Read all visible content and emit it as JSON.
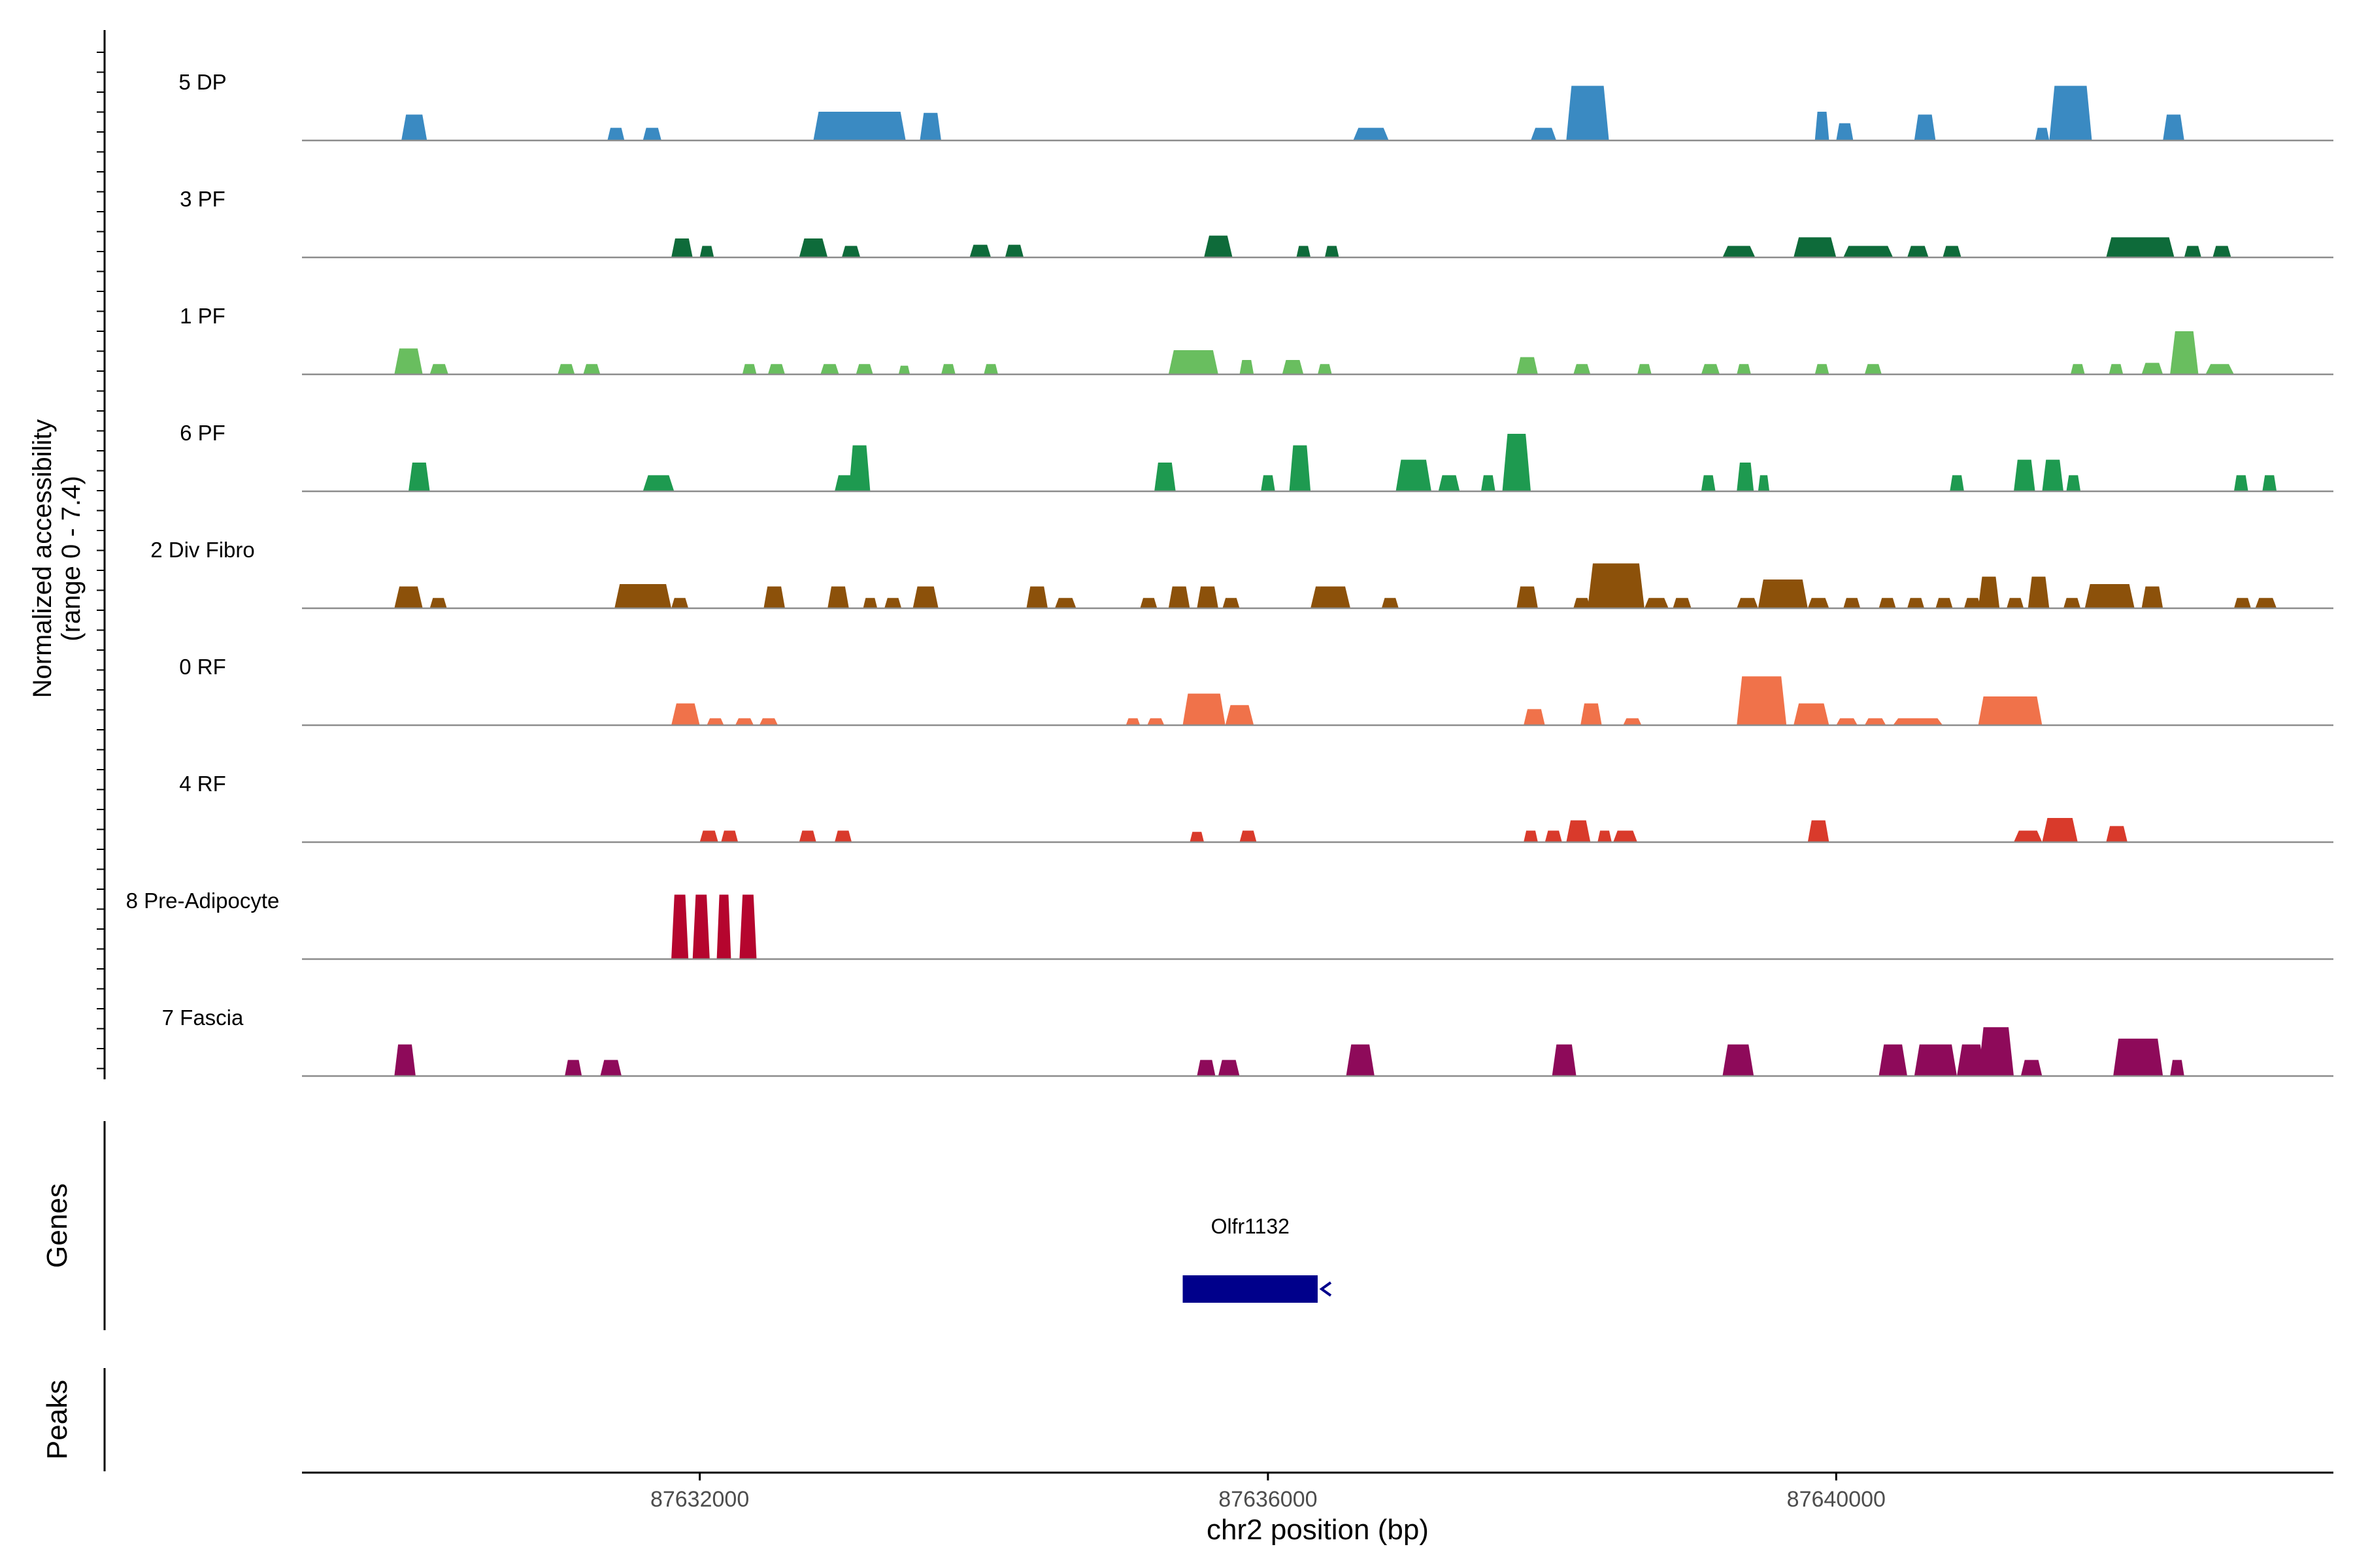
{
  "chart_data": {
    "type": "area",
    "title": "",
    "ylabel_line1": "Normalized accessibility",
    "ylabel_line2": "(range 0 - 7.4)",
    "xlabel": "chr2 position (bp)",
    "xlim": [
      87629200,
      87643500
    ],
    "xticks": [
      87632000,
      87636000,
      87640000
    ],
    "xtick_labels": [
      "87632000",
      "87636000",
      "87640000"
    ],
    "genes_label": "Genes",
    "peaks_label": "Peaks",
    "gene": {
      "name": "Olfr1132",
      "start": 87635400,
      "end": 87636350,
      "strand": "-",
      "color": "#00008b"
    },
    "tracks": [
      {
        "name": "5 DP",
        "color": "#3a8ac2",
        "peaks": [
          {
            "start": 87629900,
            "end": 87630080,
            "h": 0.45
          },
          {
            "start": 87631350,
            "end": 87631470,
            "h": 0.22
          },
          {
            "start": 87631600,
            "end": 87631730,
            "h": 0.22
          },
          {
            "start": 87632800,
            "end": 87633450,
            "h": 0.5
          },
          {
            "start": 87633550,
            "end": 87633700,
            "h": 0.48
          },
          {
            "start": 87636600,
            "end": 87636850,
            "h": 0.22
          },
          {
            "start": 87637850,
            "end": 87638030,
            "h": 0.22
          },
          {
            "start": 87638100,
            "end": 87638400,
            "h": 0.95
          },
          {
            "start": 87639850,
            "end": 87639950,
            "h": 0.5
          },
          {
            "start": 87640000,
            "end": 87640120,
            "h": 0.3
          },
          {
            "start": 87640550,
            "end": 87640700,
            "h": 0.45
          },
          {
            "start": 87641400,
            "end": 87641500,
            "h": 0.22
          },
          {
            "start": 87641500,
            "end": 87641800,
            "h": 0.95
          },
          {
            "start": 87642300,
            "end": 87642450,
            "h": 0.45
          }
        ]
      },
      {
        "name": "3 PF",
        "color": "#0e6b3a",
        "peaks": [
          {
            "start": 87631800,
            "end": 87631950,
            "h": 0.33
          },
          {
            "start": 87632000,
            "end": 87632100,
            "h": 0.2
          },
          {
            "start": 87632700,
            "end": 87632900,
            "h": 0.33
          },
          {
            "start": 87633000,
            "end": 87633130,
            "h": 0.2
          },
          {
            "start": 87633900,
            "end": 87634050,
            "h": 0.22
          },
          {
            "start": 87634150,
            "end": 87634280,
            "h": 0.22
          },
          {
            "start": 87635550,
            "end": 87635750,
            "h": 0.38
          },
          {
            "start": 87636200,
            "end": 87636300,
            "h": 0.2
          },
          {
            "start": 87636400,
            "end": 87636500,
            "h": 0.2
          },
          {
            "start": 87639200,
            "end": 87639430,
            "h": 0.2
          },
          {
            "start": 87639700,
            "end": 87640000,
            "h": 0.35
          },
          {
            "start": 87640050,
            "end": 87640400,
            "h": 0.2
          },
          {
            "start": 87640500,
            "end": 87640650,
            "h": 0.2
          },
          {
            "start": 87640750,
            "end": 87640880,
            "h": 0.2
          },
          {
            "start": 87641900,
            "end": 87642380,
            "h": 0.35
          },
          {
            "start": 87642450,
            "end": 87642570,
            "h": 0.2
          },
          {
            "start": 87642650,
            "end": 87642780,
            "h": 0.2
          }
        ]
      },
      {
        "name": "1 PF",
        "color": "#69be5f",
        "peaks": [
          {
            "start": 87629850,
            "end": 87630050,
            "h": 0.45
          },
          {
            "start": 87630100,
            "end": 87630230,
            "h": 0.18
          },
          {
            "start": 87631000,
            "end": 87631120,
            "h": 0.18
          },
          {
            "start": 87631180,
            "end": 87631300,
            "h": 0.18
          },
          {
            "start": 87632300,
            "end": 87632400,
            "h": 0.18
          },
          {
            "start": 87632480,
            "end": 87632600,
            "h": 0.18
          },
          {
            "start": 87632850,
            "end": 87632980,
            "h": 0.18
          },
          {
            "start": 87633100,
            "end": 87633220,
            "h": 0.18
          },
          {
            "start": 87633400,
            "end": 87633480,
            "h": 0.15
          },
          {
            "start": 87633700,
            "end": 87633800,
            "h": 0.18
          },
          {
            "start": 87634000,
            "end": 87634100,
            "h": 0.18
          },
          {
            "start": 87635300,
            "end": 87635650,
            "h": 0.42
          },
          {
            "start": 87635800,
            "end": 87635900,
            "h": 0.25
          },
          {
            "start": 87636100,
            "end": 87636250,
            "h": 0.25
          },
          {
            "start": 87636350,
            "end": 87636450,
            "h": 0.18
          },
          {
            "start": 87637750,
            "end": 87637900,
            "h": 0.3
          },
          {
            "start": 87638150,
            "end": 87638270,
            "h": 0.18
          },
          {
            "start": 87638600,
            "end": 87638700,
            "h": 0.18
          },
          {
            "start": 87639050,
            "end": 87639180,
            "h": 0.18
          },
          {
            "start": 87639300,
            "end": 87639400,
            "h": 0.18
          },
          {
            "start": 87639850,
            "end": 87639950,
            "h": 0.18
          },
          {
            "start": 87640200,
            "end": 87640320,
            "h": 0.18
          },
          {
            "start": 87641650,
            "end": 87641750,
            "h": 0.18
          },
          {
            "start": 87641920,
            "end": 87642020,
            "h": 0.18
          },
          {
            "start": 87642150,
            "end": 87642300,
            "h": 0.2
          },
          {
            "start": 87642350,
            "end": 87642550,
            "h": 0.75
          },
          {
            "start": 87642600,
            "end": 87642800,
            "h": 0.18
          }
        ]
      },
      {
        "name": "6 PF",
        "color": "#1e9a50",
        "peaks": [
          {
            "start": 87629950,
            "end": 87630100,
            "h": 0.5
          },
          {
            "start": 87631600,
            "end": 87631820,
            "h": 0.28
          },
          {
            "start": 87632950,
            "end": 87633100,
            "h": 0.28
          },
          {
            "start": 87633050,
            "end": 87633200,
            "h": 0.8
          },
          {
            "start": 87635200,
            "end": 87635350,
            "h": 0.5
          },
          {
            "start": 87635950,
            "end": 87636050,
            "h": 0.28
          },
          {
            "start": 87636150,
            "end": 87636300,
            "h": 0.8
          },
          {
            "start": 87636900,
            "end": 87637150,
            "h": 0.55
          },
          {
            "start": 87637200,
            "end": 87637350,
            "h": 0.28
          },
          {
            "start": 87637500,
            "end": 87637600,
            "h": 0.28
          },
          {
            "start": 87637650,
            "end": 87637850,
            "h": 1.0
          },
          {
            "start": 87639050,
            "end": 87639150,
            "h": 0.28
          },
          {
            "start": 87639300,
            "end": 87639420,
            "h": 0.5
          },
          {
            "start": 87639450,
            "end": 87639530,
            "h": 0.28
          },
          {
            "start": 87640800,
            "end": 87640900,
            "h": 0.28
          },
          {
            "start": 87641250,
            "end": 87641400,
            "h": 0.55
          },
          {
            "start": 87641450,
            "end": 87641600,
            "h": 0.55
          },
          {
            "start": 87641620,
            "end": 87641720,
            "h": 0.28
          },
          {
            "start": 87642800,
            "end": 87642900,
            "h": 0.28
          },
          {
            "start": 87643000,
            "end": 87643100,
            "h": 0.28
          }
        ]
      },
      {
        "name": "2 Div Fibro",
        "color": "#8c510a",
        "peaks": [
          {
            "start": 87629850,
            "end": 87630050,
            "h": 0.38
          },
          {
            "start": 87630100,
            "end": 87630220,
            "h": 0.18
          },
          {
            "start": 87631400,
            "end": 87631800,
            "h": 0.42
          },
          {
            "start": 87631800,
            "end": 87631920,
            "h": 0.18
          },
          {
            "start": 87632450,
            "end": 87632600,
            "h": 0.38
          },
          {
            "start": 87632900,
            "end": 87633050,
            "h": 0.38
          },
          {
            "start": 87633150,
            "end": 87633250,
            "h": 0.18
          },
          {
            "start": 87633300,
            "end": 87633420,
            "h": 0.18
          },
          {
            "start": 87633500,
            "end": 87633680,
            "h": 0.38
          },
          {
            "start": 87634300,
            "end": 87634450,
            "h": 0.38
          },
          {
            "start": 87634500,
            "end": 87634650,
            "h": 0.18
          },
          {
            "start": 87635100,
            "end": 87635220,
            "h": 0.18
          },
          {
            "start": 87635300,
            "end": 87635450,
            "h": 0.38
          },
          {
            "start": 87635500,
            "end": 87635650,
            "h": 0.38
          },
          {
            "start": 87635680,
            "end": 87635800,
            "h": 0.18
          },
          {
            "start": 87636300,
            "end": 87636580,
            "h": 0.38
          },
          {
            "start": 87636800,
            "end": 87636920,
            "h": 0.18
          },
          {
            "start": 87637750,
            "end": 87637900,
            "h": 0.38
          },
          {
            "start": 87638150,
            "end": 87638270,
            "h": 0.18
          },
          {
            "start": 87638250,
            "end": 87638650,
            "h": 0.78
          },
          {
            "start": 87638650,
            "end": 87638820,
            "h": 0.18
          },
          {
            "start": 87638850,
            "end": 87638980,
            "h": 0.18
          },
          {
            "start": 87639300,
            "end": 87639450,
            "h": 0.18
          },
          {
            "start": 87639450,
            "end": 87639800,
            "h": 0.5
          },
          {
            "start": 87639800,
            "end": 87639950,
            "h": 0.18
          },
          {
            "start": 87640050,
            "end": 87640170,
            "h": 0.18
          },
          {
            "start": 87640300,
            "end": 87640420,
            "h": 0.18
          },
          {
            "start": 87640500,
            "end": 87640620,
            "h": 0.18
          },
          {
            "start": 87640700,
            "end": 87640820,
            "h": 0.18
          },
          {
            "start": 87640900,
            "end": 87641020,
            "h": 0.18
          },
          {
            "start": 87641000,
            "end": 87641150,
            "h": 0.55
          },
          {
            "start": 87641200,
            "end": 87641320,
            "h": 0.18
          },
          {
            "start": 87641350,
            "end": 87641500,
            "h": 0.55
          },
          {
            "start": 87641600,
            "end": 87641720,
            "h": 0.18
          },
          {
            "start": 87641750,
            "end": 87642100,
            "h": 0.42
          },
          {
            "start": 87642150,
            "end": 87642300,
            "h": 0.38
          },
          {
            "start": 87642800,
            "end": 87642920,
            "h": 0.18
          },
          {
            "start": 87642950,
            "end": 87643100,
            "h": 0.18
          }
        ]
      },
      {
        "name": "0 RF",
        "color": "#f0724a",
        "peaks": [
          {
            "start": 87631800,
            "end": 87632000,
            "h": 0.38
          },
          {
            "start": 87632050,
            "end": 87632170,
            "h": 0.12
          },
          {
            "start": 87632250,
            "end": 87632380,
            "h": 0.12
          },
          {
            "start": 87632420,
            "end": 87632550,
            "h": 0.12
          },
          {
            "start": 87635000,
            "end": 87635100,
            "h": 0.12
          },
          {
            "start": 87635150,
            "end": 87635270,
            "h": 0.12
          },
          {
            "start": 87635400,
            "end": 87635700,
            "h": 0.55
          },
          {
            "start": 87635700,
            "end": 87635900,
            "h": 0.35
          },
          {
            "start": 87637800,
            "end": 87637950,
            "h": 0.28
          },
          {
            "start": 87638200,
            "end": 87638350,
            "h": 0.38
          },
          {
            "start": 87638500,
            "end": 87638630,
            "h": 0.12
          },
          {
            "start": 87639300,
            "end": 87639650,
            "h": 0.85
          },
          {
            "start": 87639700,
            "end": 87639950,
            "h": 0.38
          },
          {
            "start": 87640000,
            "end": 87640150,
            "h": 0.12
          },
          {
            "start": 87640200,
            "end": 87640350,
            "h": 0.12
          },
          {
            "start": 87640400,
            "end": 87640750,
            "h": 0.12
          },
          {
            "start": 87641000,
            "end": 87641450,
            "h": 0.5
          }
        ]
      },
      {
        "name": "4 RF",
        "color": "#d93a2b",
        "peaks": [
          {
            "start": 87632000,
            "end": 87632130,
            "h": 0.2
          },
          {
            "start": 87632150,
            "end": 87632270,
            "h": 0.2
          },
          {
            "start": 87632700,
            "end": 87632820,
            "h": 0.2
          },
          {
            "start": 87632950,
            "end": 87633070,
            "h": 0.2
          },
          {
            "start": 87635450,
            "end": 87635550,
            "h": 0.18
          },
          {
            "start": 87635800,
            "end": 87635920,
            "h": 0.2
          },
          {
            "start": 87637800,
            "end": 87637900,
            "h": 0.2
          },
          {
            "start": 87637950,
            "end": 87638070,
            "h": 0.2
          },
          {
            "start": 87638100,
            "end": 87638270,
            "h": 0.38
          },
          {
            "start": 87638320,
            "end": 87638420,
            "h": 0.2
          },
          {
            "start": 87638430,
            "end": 87638600,
            "h": 0.2
          },
          {
            "start": 87639800,
            "end": 87639950,
            "h": 0.38
          },
          {
            "start": 87641250,
            "end": 87641450,
            "h": 0.2
          },
          {
            "start": 87641450,
            "end": 87641700,
            "h": 0.42
          },
          {
            "start": 87641900,
            "end": 87642050,
            "h": 0.28
          }
        ]
      },
      {
        "name": "8 Pre-Adipocyte",
        "color": "#b5052e",
        "peaks": [
          {
            "start": 87631800,
            "end": 87631920,
            "h": 1.12
          },
          {
            "start": 87631950,
            "end": 87632070,
            "h": 1.12
          },
          {
            "start": 87632120,
            "end": 87632220,
            "h": 1.12
          },
          {
            "start": 87632280,
            "end": 87632400,
            "h": 1.12
          }
        ]
      },
      {
        "name": "7 Fascia",
        "color": "#8e0a5a",
        "peaks": [
          {
            "start": 87629850,
            "end": 87630000,
            "h": 0.55
          },
          {
            "start": 87631050,
            "end": 87631170,
            "h": 0.28
          },
          {
            "start": 87631300,
            "end": 87631450,
            "h": 0.28
          },
          {
            "start": 87635500,
            "end": 87635630,
            "h": 0.28
          },
          {
            "start": 87635650,
            "end": 87635800,
            "h": 0.28
          },
          {
            "start": 87636550,
            "end": 87636750,
            "h": 0.55
          },
          {
            "start": 87638000,
            "end": 87638170,
            "h": 0.55
          },
          {
            "start": 87639200,
            "end": 87639420,
            "h": 0.55
          },
          {
            "start": 87640300,
            "end": 87640500,
            "h": 0.55
          },
          {
            "start": 87640550,
            "end": 87640850,
            "h": 0.55
          },
          {
            "start": 87640850,
            "end": 87641050,
            "h": 0.55
          },
          {
            "start": 87641000,
            "end": 87641250,
            "h": 0.85
          },
          {
            "start": 87641300,
            "end": 87641450,
            "h": 0.28
          },
          {
            "start": 87641950,
            "end": 87642300,
            "h": 0.65
          },
          {
            "start": 87642350,
            "end": 87642450,
            "h": 0.28
          }
        ]
      }
    ]
  }
}
